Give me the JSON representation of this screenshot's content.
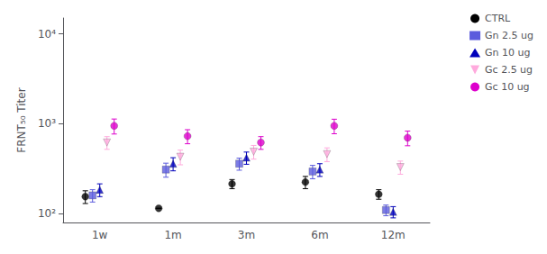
{
  "chart_data": {
    "type": "scatter",
    "categories": [
      "1w",
      "1m",
      "3m",
      "6m",
      "12m"
    ],
    "ylabel": "FRNT₅₀ Titer",
    "log": "y",
    "ylim": [
      80,
      15000
    ],
    "yticks": [
      {
        "value": 100,
        "label": "10²"
      },
      {
        "value": 1000,
        "label": "10³"
      },
      {
        "value": 10000,
        "label": "10⁴"
      }
    ],
    "grid": false,
    "legend": "upper right",
    "series": [
      {
        "name": "CTRL",
        "color": "#000000",
        "marker": "circle",
        "values": [
          155,
          115,
          215,
          225,
          165
        ],
        "yerr_low": [
          25,
          0,
          25,
          35,
          20
        ],
        "yerr_high": [
          25,
          0,
          25,
          35,
          20
        ]
      },
      {
        "name": "Gn 2.5 ug",
        "color": "#5b5bdd",
        "marker": "square",
        "values": [
          160,
          310,
          360,
          295,
          110
        ],
        "yerr_low": [
          25,
          55,
          55,
          50,
          15
        ],
        "yerr_high": [
          25,
          55,
          55,
          50,
          15
        ]
      },
      {
        "name": "Gn 10 ug",
        "color": "#0000bb",
        "marker": "triangle-up",
        "values": [
          185,
          360,
          420,
          310,
          105
        ],
        "yerr_low": [
          30,
          60,
          65,
          50,
          15
        ],
        "yerr_high": [
          30,
          60,
          65,
          50,
          15
        ]
      },
      {
        "name": "Gc 2.5 ug",
        "color": "#ffaadd",
        "marker": "triangle-down",
        "values": [
          620,
          430,
          490,
          460,
          330
        ],
        "yerr_low": [
          100,
          80,
          85,
          80,
          55
        ],
        "yerr_high": [
          100,
          80,
          85,
          80,
          55
        ]
      },
      {
        "name": "Gc 10 ug",
        "color": "#dd00cc",
        "marker": "circle",
        "values": [
          950,
          730,
          620,
          950,
          700
        ],
        "yerr_low": [
          180,
          130,
          100,
          175,
          130
        ],
        "yerr_high": [
          180,
          130,
          100,
          175,
          130
        ]
      }
    ]
  }
}
